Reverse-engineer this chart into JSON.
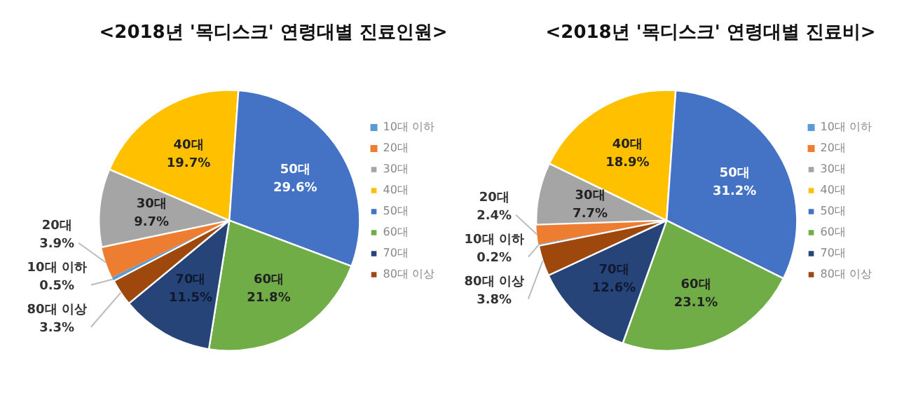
{
  "chart_data": [
    {
      "type": "pie",
      "title": "<2018년 '목디스크' 연령대별 진료인원>",
      "categories": [
        "10대 이하",
        "20대",
        "30대",
        "40대",
        "50대",
        "60대",
        "70대",
        "80대 이상"
      ],
      "values": [
        0.5,
        3.9,
        9.7,
        19.7,
        29.6,
        21.8,
        11.5,
        3.3
      ],
      "value_labels": [
        "0.5%",
        "3.9%",
        "9.7%",
        "19.7%",
        "29.6%",
        "21.8%",
        "11.5%",
        "3.3%"
      ],
      "colors": [
        "#5b9bd5",
        "#ed7d31",
        "#a5a5a5",
        "#ffc000",
        "#4472c4",
        "#70ad47",
        "#264478",
        "#9e480e"
      ],
      "legend": "right"
    },
    {
      "type": "pie",
      "title": "<2018년 '목디스크' 연령대별 진료비>",
      "categories": [
        "10대 이하",
        "20대",
        "30대",
        "40대",
        "50대",
        "60대",
        "70대",
        "80대 이상"
      ],
      "values": [
        0.2,
        2.4,
        7.7,
        18.9,
        31.2,
        23.1,
        12.6,
        3.8
      ],
      "value_labels": [
        "0.2%",
        "2.4%",
        "7.7%",
        "18.9%",
        "31.2%",
        "23.1%",
        "12.6%",
        "3.8%"
      ],
      "colors": [
        "#5b9bd5",
        "#ed7d31",
        "#a5a5a5",
        "#ffc000",
        "#4472c4",
        "#70ad47",
        "#264478",
        "#9e480e"
      ],
      "legend": "right"
    }
  ]
}
